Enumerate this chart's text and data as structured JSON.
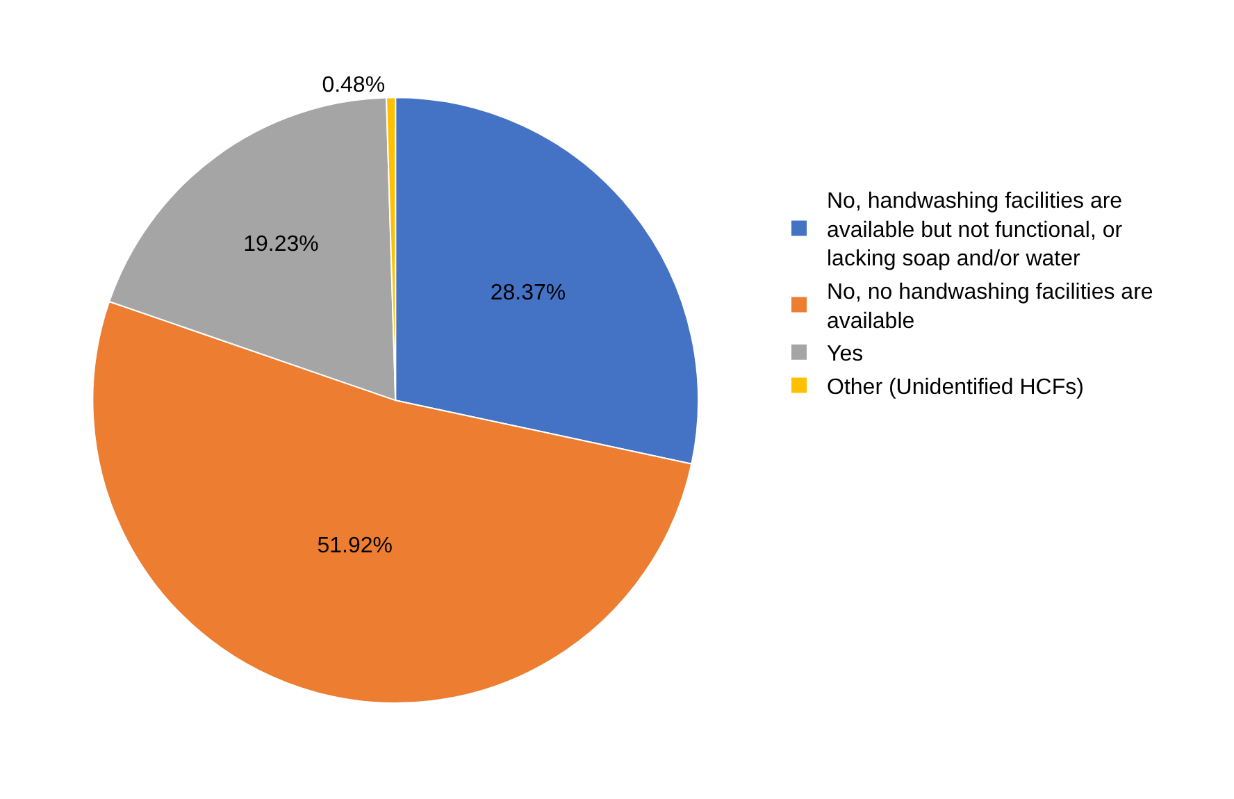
{
  "chart_data": {
    "type": "pie",
    "categories": [
      "No, handwashing facilities are available but not functional, or lacking soap and/or water",
      "No, no handwashing facilities are available",
      "Yes",
      "Other (Unidentified HCFs)"
    ],
    "values": [
      28.37,
      51.92,
      19.23,
      0.48
    ],
    "colors": [
      "#4472c4",
      "#ed7d31",
      "#a5a5a5",
      "#ffc000"
    ],
    "value_labels": [
      "28.37%",
      "51.92%",
      "19.23%",
      "0.48%"
    ],
    "legend": "right"
  }
}
